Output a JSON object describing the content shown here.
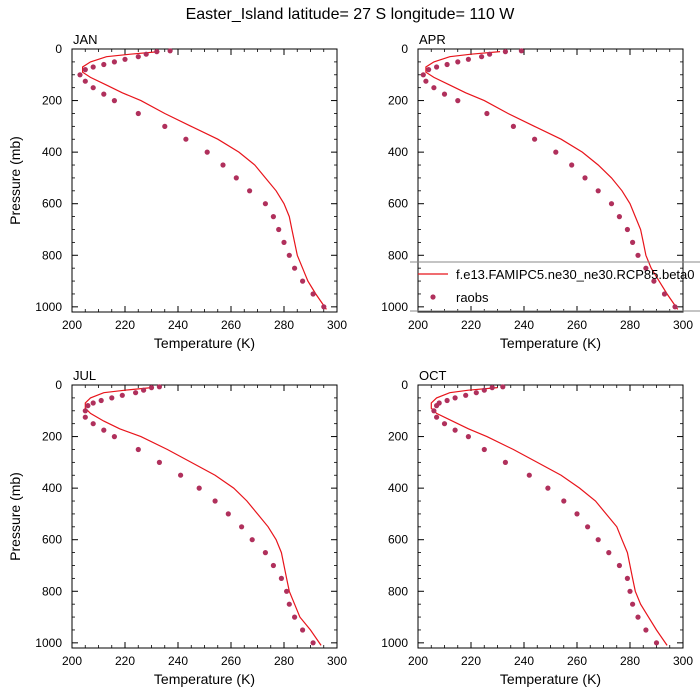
{
  "title": "Easter_Island  latitude= 27 S longitude= 110 W",
  "colors": {
    "model": "#e8141b",
    "obs": "#b0305c",
    "frame": "#000000"
  },
  "legend": {
    "entries": [
      {
        "label": "f.e13.FAMIPC5.ne30_ne30.RCP85.beta0",
        "marker": "line"
      },
      {
        "label": "raobs",
        "marker": "dot"
      }
    ]
  },
  "chart_data": [
    {
      "type": "line",
      "panel": "JAN",
      "xlabel": "Temperature (K)",
      "ylabel": "Pressure (mb)",
      "xlim": [
        200,
        300
      ],
      "ylim": [
        1020,
        0
      ],
      "y_reversed": true,
      "xticks": [
        200,
        220,
        240,
        260,
        280,
        300
      ],
      "yticks": [
        0,
        200,
        400,
        600,
        800,
        1000
      ],
      "series": [
        {
          "name": "f.e13.FAMIPC5.ne30_ne30.RCP85.beta0",
          "kind": "line",
          "points": [
            [
              233,
              10
            ],
            [
              222,
              20
            ],
            [
              213,
              30
            ],
            [
              207,
              50
            ],
            [
              204,
              70
            ],
            [
              204,
              90
            ],
            [
              207,
              110
            ],
            [
              213,
              140
            ],
            [
              219,
              170
            ],
            [
              226,
              200
            ],
            [
              235,
              250
            ],
            [
              245,
              300
            ],
            [
              255,
              350
            ],
            [
              263,
              400
            ],
            [
              269,
              450
            ],
            [
              273,
              500
            ],
            [
              277,
              550
            ],
            [
              280,
              600
            ],
            [
              282,
              650
            ],
            [
              283,
              700
            ],
            [
              284,
              750
            ],
            [
              285,
              800
            ],
            [
              287,
              850
            ],
            [
              289,
              900
            ],
            [
              292,
              950
            ],
            [
              296,
              1010
            ]
          ]
        },
        {
          "name": "raobs",
          "kind": "scatter",
          "points": [
            [
              237,
              7
            ],
            [
              232,
              10
            ],
            [
              228,
              20
            ],
            [
              225,
              30
            ],
            [
              220,
              40
            ],
            [
              216,
              50
            ],
            [
              212,
              60
            ],
            [
              208,
              70
            ],
            [
              205,
              80
            ],
            [
              203,
              100
            ],
            [
              205,
              125
            ],
            [
              208,
              150
            ],
            [
              212,
              175
            ],
            [
              216,
              200
            ],
            [
              225,
              250
            ],
            [
              235,
              300
            ],
            [
              243,
              350
            ],
            [
              251,
              400
            ],
            [
              257,
              450
            ],
            [
              262,
              500
            ],
            [
              267,
              550
            ],
            [
              273,
              600
            ],
            [
              276,
              650
            ],
            [
              278,
              700
            ],
            [
              280,
              750
            ],
            [
              282,
              800
            ],
            [
              284,
              850
            ],
            [
              287,
              900
            ],
            [
              291,
              950
            ],
            [
              295,
              1000
            ]
          ]
        }
      ]
    },
    {
      "type": "line",
      "panel": "APR",
      "xlabel": "Temperature (K)",
      "ylabel": "",
      "xlim": [
        200,
        300
      ],
      "ylim": [
        1020,
        0
      ],
      "y_reversed": true,
      "xticks": [
        200,
        220,
        240,
        260,
        280,
        300
      ],
      "yticks": [
        0,
        200,
        400,
        600,
        800,
        1000
      ],
      "series": [
        {
          "name": "f.e13.FAMIPC5.ne30_ne30.RCP85.beta0",
          "kind": "line",
          "points": [
            [
              231,
              10
            ],
            [
              220,
              20
            ],
            [
              212,
              30
            ],
            [
              206,
              50
            ],
            [
              203,
              70
            ],
            [
              203,
              90
            ],
            [
              206,
              110
            ],
            [
              212,
              140
            ],
            [
              218,
              170
            ],
            [
              225,
              200
            ],
            [
              234,
              250
            ],
            [
              244,
              300
            ],
            [
              254,
              350
            ],
            [
              262,
              400
            ],
            [
              268,
              450
            ],
            [
              273,
              500
            ],
            [
              277,
              550
            ],
            [
              280,
              600
            ],
            [
              282,
              650
            ],
            [
              284,
              700
            ],
            [
              285,
              750
            ],
            [
              286,
              800
            ],
            [
              288,
              850
            ],
            [
              291,
              900
            ],
            [
              294,
              950
            ],
            [
              298,
              1010
            ]
          ]
        },
        {
          "name": "raobs",
          "kind": "scatter",
          "points": [
            [
              239,
              7
            ],
            [
              233,
              10
            ],
            [
              227,
              20
            ],
            [
              224,
              30
            ],
            [
              219,
              40
            ],
            [
              215,
              50
            ],
            [
              211,
              60
            ],
            [
              207,
              70
            ],
            [
              204,
              80
            ],
            [
              202,
              100
            ],
            [
              203,
              125
            ],
            [
              206,
              150
            ],
            [
              210,
              175
            ],
            [
              215,
              200
            ],
            [
              226,
              250
            ],
            [
              236,
              300
            ],
            [
              244,
              350
            ],
            [
              252,
              400
            ],
            [
              258,
              450
            ],
            [
              263,
              500
            ],
            [
              268,
              550
            ],
            [
              273,
              600
            ],
            [
              276,
              650
            ],
            [
              279,
              700
            ],
            [
              281,
              750
            ],
            [
              283,
              800
            ],
            [
              286,
              850
            ],
            [
              289,
              900
            ],
            [
              293,
              950
            ],
            [
              297,
              1000
            ]
          ]
        }
      ]
    },
    {
      "type": "line",
      "panel": "JUL",
      "xlabel": "Temperature (K)",
      "ylabel": "Pressure (mb)",
      "xlim": [
        200,
        300
      ],
      "ylim": [
        1020,
        0
      ],
      "y_reversed": true,
      "xticks": [
        200,
        220,
        240,
        260,
        280,
        300
      ],
      "yticks": [
        0,
        200,
        400,
        600,
        800,
        1000
      ],
      "series": [
        {
          "name": "f.e13.FAMIPC5.ne30_ne30.RCP85.beta0",
          "kind": "line",
          "points": [
            [
              230,
              10
            ],
            [
              220,
              20
            ],
            [
              212,
              30
            ],
            [
              207,
              50
            ],
            [
              205,
              70
            ],
            [
              205,
              90
            ],
            [
              207,
              110
            ],
            [
              212,
              140
            ],
            [
              218,
              170
            ],
            [
              226,
              200
            ],
            [
              236,
              250
            ],
            [
              245,
              300
            ],
            [
              254,
              350
            ],
            [
              261,
              400
            ],
            [
              266,
              450
            ],
            [
              270,
              500
            ],
            [
              274,
              550
            ],
            [
              277,
              600
            ],
            [
              279,
              650
            ],
            [
              280,
              700
            ],
            [
              281,
              750
            ],
            [
              282,
              800
            ],
            [
              284,
              850
            ],
            [
              286,
              900
            ],
            [
              290,
              950
            ],
            [
              294,
              1010
            ]
          ]
        },
        {
          "name": "raobs",
          "kind": "scatter",
          "points": [
            [
              233,
              7
            ],
            [
              230,
              10
            ],
            [
              227,
              20
            ],
            [
              224,
              30
            ],
            [
              219,
              40
            ],
            [
              215,
              50
            ],
            [
              211,
              60
            ],
            [
              208,
              70
            ],
            [
              206,
              80
            ],
            [
              205,
              100
            ],
            [
              205,
              125
            ],
            [
              208,
              150
            ],
            [
              212,
              175
            ],
            [
              216,
              200
            ],
            [
              225,
              250
            ],
            [
              233,
              300
            ],
            [
              241,
              350
            ],
            [
              248,
              400
            ],
            [
              254,
              450
            ],
            [
              259,
              500
            ],
            [
              264,
              550
            ],
            [
              268,
              600
            ],
            [
              273,
              650
            ],
            [
              276,
              700
            ],
            [
              279,
              750
            ],
            [
              281,
              800
            ],
            [
              282,
              850
            ],
            [
              284,
              900
            ],
            [
              287,
              950
            ],
            [
              291,
              1000
            ]
          ]
        }
      ]
    },
    {
      "type": "line",
      "panel": "OCT",
      "xlabel": "Temperature (K)",
      "ylabel": "",
      "xlim": [
        200,
        300
      ],
      "ylim": [
        1020,
        0
      ],
      "y_reversed": true,
      "xticks": [
        200,
        220,
        240,
        260,
        280,
        300
      ],
      "yticks": [
        0,
        200,
        400,
        600,
        800,
        1000
      ],
      "series": [
        {
          "name": "f.e13.FAMIPC5.ne30_ne30.RCP85.beta0",
          "kind": "line",
          "points": [
            [
              230,
              10
            ],
            [
              219,
              20
            ],
            [
              212,
              30
            ],
            [
              207,
              50
            ],
            [
              205,
              70
            ],
            [
              205,
              90
            ],
            [
              207,
              110
            ],
            [
              213,
              140
            ],
            [
              219,
              170
            ],
            [
              226,
              200
            ],
            [
              236,
              250
            ],
            [
              245,
              300
            ],
            [
              254,
              350
            ],
            [
              261,
              400
            ],
            [
              267,
              450
            ],
            [
              271,
              500
            ],
            [
              275,
              550
            ],
            [
              277,
              600
            ],
            [
              279,
              650
            ],
            [
              280,
              700
            ],
            [
              281,
              750
            ],
            [
              282,
              800
            ],
            [
              284,
              850
            ],
            [
              287,
              900
            ],
            [
              290,
              950
            ],
            [
              294,
              1010
            ]
          ]
        },
        {
          "name": "raobs",
          "kind": "scatter",
          "points": [
            [
              232,
              7
            ],
            [
              228,
              10
            ],
            [
              225,
              20
            ],
            [
              222,
              30
            ],
            [
              218,
              40
            ],
            [
              214,
              50
            ],
            [
              211,
              60
            ],
            [
              208,
              70
            ],
            [
              207,
              80
            ],
            [
              206,
              100
            ],
            [
              207,
              125
            ],
            [
              210,
              150
            ],
            [
              214,
              175
            ],
            [
              219,
              200
            ],
            [
              225,
              250
            ],
            [
              233,
              300
            ],
            [
              242,
              350
            ],
            [
              249,
              400
            ],
            [
              255,
              450
            ],
            [
              260,
              500
            ],
            [
              264,
              550
            ],
            [
              268,
              600
            ],
            [
              272,
              650
            ],
            [
              276,
              700
            ],
            [
              279,
              750
            ],
            [
              280,
              800
            ],
            [
              281,
              850
            ],
            [
              283,
              900
            ],
            [
              286,
              950
            ],
            [
              290,
              1000
            ]
          ]
        }
      ]
    }
  ]
}
